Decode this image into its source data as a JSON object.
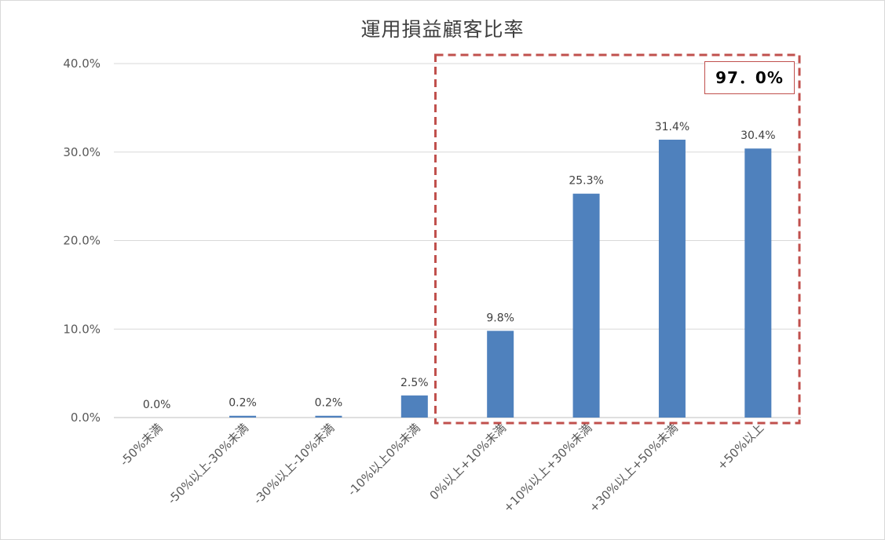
{
  "chart_data": {
    "type": "bar",
    "title": "運用損益顧客比率",
    "categories": [
      "-50%未満",
      "-50%以上-30%未満",
      "-30%以上-10%未満",
      "-10%以上0%未満",
      "0%以上+10%未満",
      "+10%以上+30%未満",
      "+30%以上+50%未満",
      "+50%以上"
    ],
    "values": [
      0.0,
      0.2,
      0.2,
      2.5,
      9.8,
      25.3,
      31.4,
      30.4
    ],
    "value_labels": [
      "0.0%",
      "0.2%",
      "0.2%",
      "2.5%",
      "9.8%",
      "25.3%",
      "31.4%",
      "30.4%"
    ],
    "yticks": [
      0,
      10,
      20,
      30,
      40
    ],
    "ytick_labels": [
      "0.0%",
      "10.0%",
      "20.0%",
      "30.0%",
      "40.0%"
    ],
    "ylim": [
      0,
      40
    ],
    "xlabel": "",
    "ylabel": "",
    "grid": true,
    "bar_color": "#4f81bd",
    "highlight": {
      "from_category": 4,
      "to_category": 7,
      "label": "97．0%",
      "color": "#c0504d"
    }
  }
}
